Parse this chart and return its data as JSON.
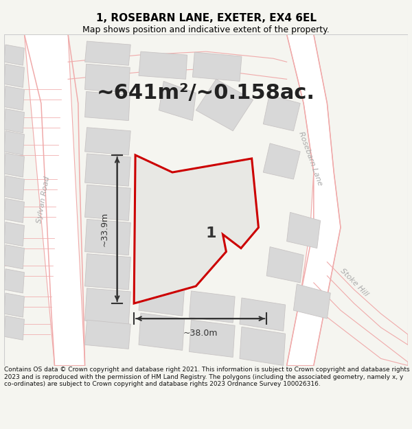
{
  "title": "1, ROSEBARN LANE, EXETER, EX4 6EL",
  "subtitle": "Map shows position and indicative extent of the property.",
  "area_text": "~641m²/~0.158ac.",
  "dim_horizontal": "~38.0m",
  "dim_vertical": "~33.9m",
  "footer": "Contains OS data © Crown copyright and database right 2021. This information is subject to Crown copyright and database rights 2023 and is reproduced with the permission of HM Land Registry. The polygons (including the associated geometry, namely x, y co-ordinates) are subject to Crown copyright and database rights 2023 Ordnance Survey 100026316.",
  "map_bg": "#ffffff",
  "fig_bg": "#f5f5f0",
  "road_line_color": "#f0aaaa",
  "road_fill_color": "#ffffff",
  "plot_fill": "#d8d8d8",
  "plot_edge": "#c8c4c4",
  "main_fill": "#e0e0dc",
  "main_stroke": "#cc0000",
  "road_label_color": "#aaaaaa",
  "dim_color": "#333333",
  "area_color": "#222222",
  "label_color": "#333333",
  "title_fontsize": 11,
  "subtitle_fontsize": 9,
  "area_fontsize": 22,
  "dim_fontsize": 9,
  "footer_fontsize": 6.5,
  "label_fontsize": 16,
  "road_label_fontsize": 8,
  "main_lw": 2.2,
  "road_lw": 0.8,
  "plot_lw": 0.6
}
